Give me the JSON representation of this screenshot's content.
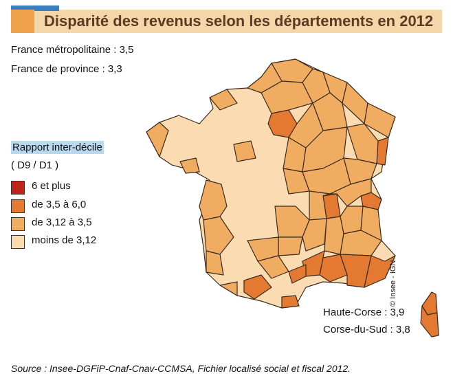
{
  "header": {
    "title": "Disparité des revenus selon les départements en 2012",
    "accent_color": "#3b7fc2",
    "band_color": "#f4d7a8",
    "square_color": "#f0a24b"
  },
  "stats": [
    "France métropolitaine : 3,5",
    "France de province : 3,3"
  ],
  "legend": {
    "title": "Rapport inter-décile",
    "subtitle": "( D9 / D1 )",
    "items": [
      {
        "label": "6 et plus",
        "color": "#c0231c"
      },
      {
        "label": "de 3,5 à 6,0",
        "color": "#e47a32"
      },
      {
        "label": "de 3,12 à 3,5",
        "color": "#f0ad62"
      },
      {
        "label": "moins de 3,12",
        "color": "#fbdcb2"
      }
    ]
  },
  "corsica": {
    "haute_corse": "Haute-Corse : 3,9",
    "corse_du_sud": "Corse-du-Sud : 3,8"
  },
  "credit": "© Insee - IGN",
  "source": "Source : Insee-DGFiP-Cnaf-Cnav-CCMSA, Fichier localisé social et fiscal 2012."
}
